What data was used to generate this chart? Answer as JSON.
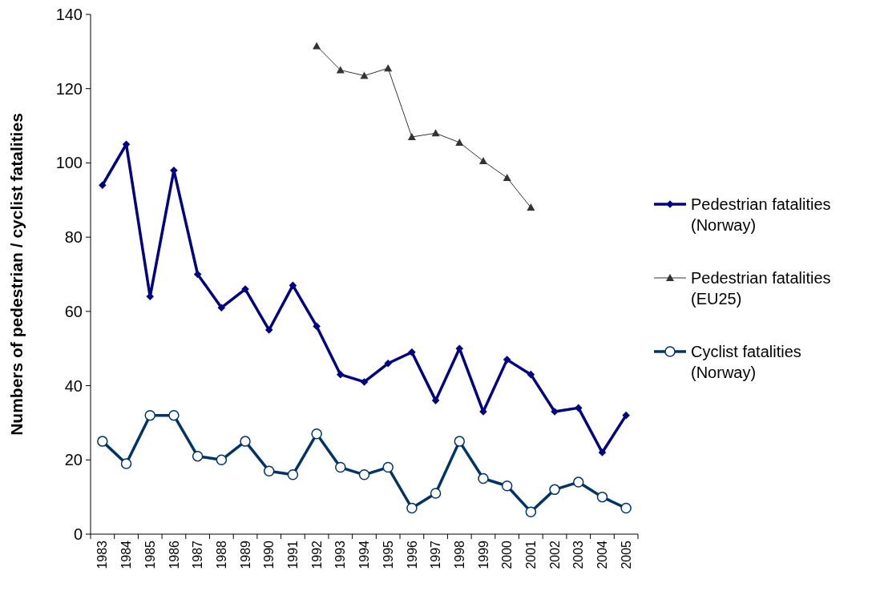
{
  "chart_data": {
    "type": "line",
    "ylabel": "Numbers of pedestrian / cyclist fatalities",
    "categories": [
      "1983",
      "1984",
      "1985",
      "1986",
      "1987",
      "1988",
      "1989",
      "1990",
      "1991",
      "1992",
      "1993",
      "1994",
      "1995",
      "1996",
      "1997",
      "1998",
      "1999",
      "2000",
      "2001",
      "2002",
      "2003",
      "2004",
      "2005"
    ],
    "ylim": [
      0,
      140
    ],
    "yticks": [
      0,
      20,
      40,
      60,
      80,
      100,
      120,
      140
    ],
    "grid": false,
    "legend": "right",
    "series": [
      {
        "name": "Pedestrian fatalities (Norway)",
        "color": "#000080",
        "marker": "diamond",
        "values": [
          94,
          105,
          64,
          98,
          70,
          61,
          66,
          55,
          67,
          56,
          43,
          41,
          46,
          49,
          36,
          50,
          33,
          47,
          43,
          33,
          34,
          22,
          32
        ]
      },
      {
        "name": "Pedestrian fatalities (EU25)",
        "color": "#333333",
        "marker": "triangle",
        "values": [
          null,
          null,
          null,
          null,
          null,
          null,
          null,
          null,
          null,
          131.5,
          125,
          123.5,
          125.5,
          107,
          108,
          105.5,
          100.5,
          96,
          88,
          null,
          null,
          null,
          null
        ]
      },
      {
        "name": "Cyclist fatalities (Norway)",
        "color": "#003366",
        "marker": "circle",
        "values": [
          25,
          19,
          32,
          32,
          21,
          20,
          25,
          17,
          16,
          27,
          18,
          16,
          18,
          7,
          11,
          25,
          15,
          13,
          6,
          12,
          14,
          10,
          7
        ]
      }
    ]
  }
}
